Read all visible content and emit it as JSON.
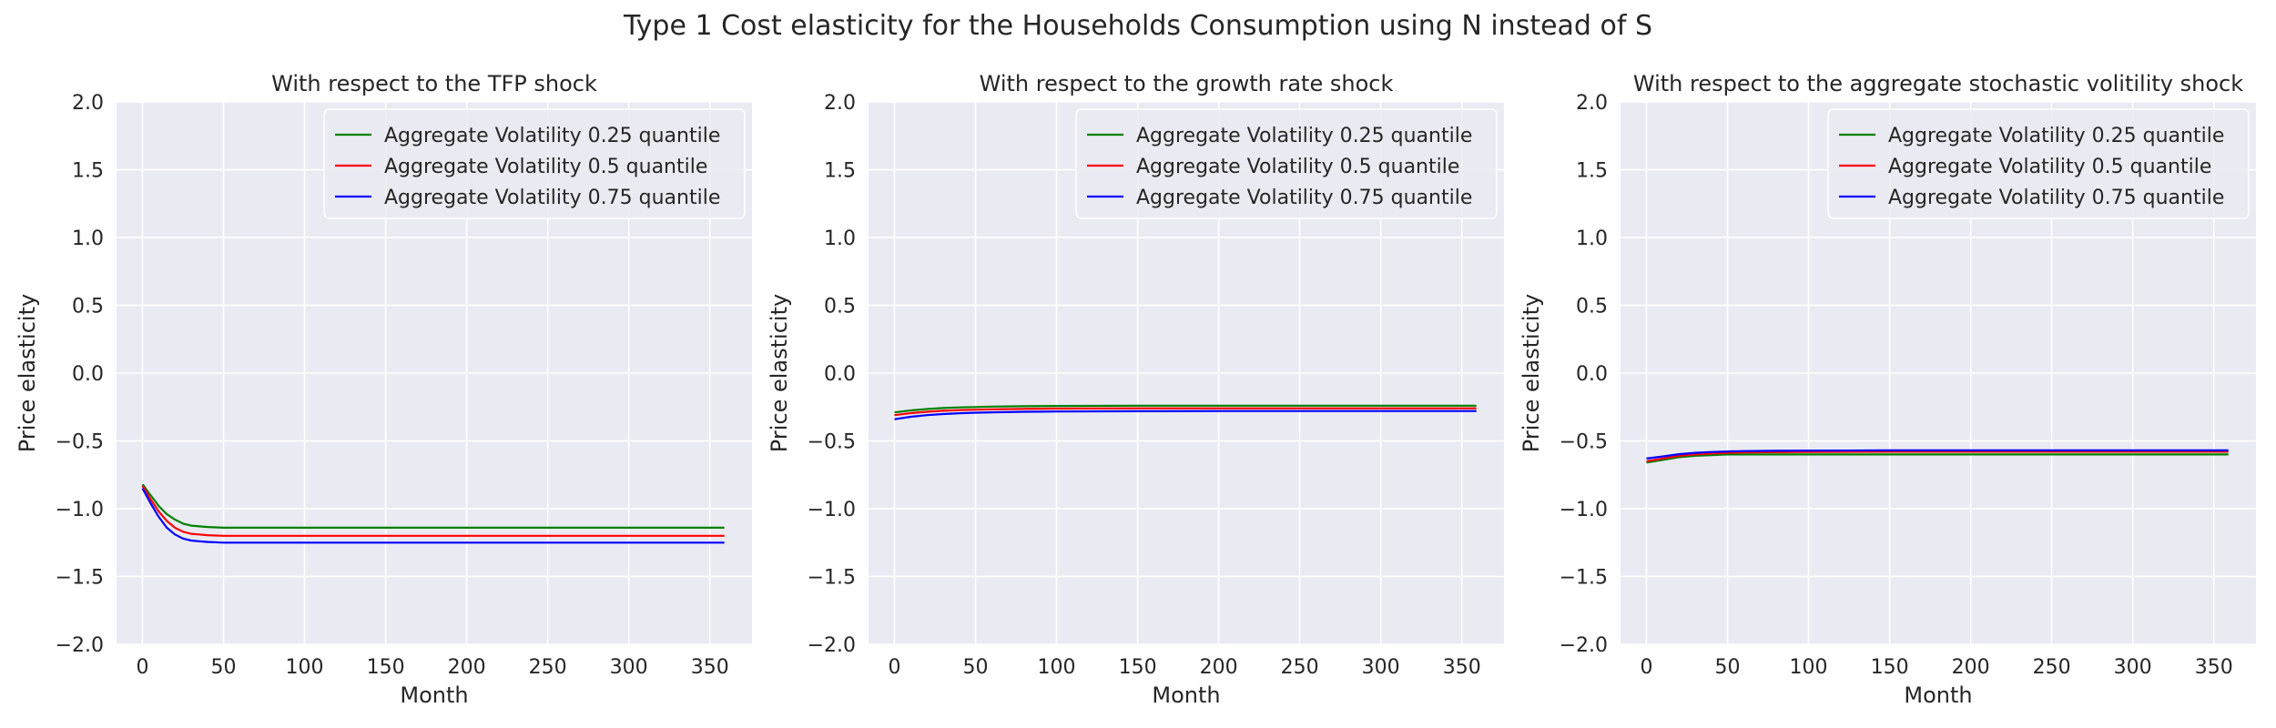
{
  "figure_title": "Type 1 Cost elasticity for the Households Consumption using N instead of S",
  "colors": {
    "panel_bg": "#eaeaf2",
    "grid": "#ffffff",
    "text": "#262626"
  },
  "chart_data": [
    {
      "type": "line",
      "title": "With respect to the TFP shock",
      "xlabel": "Month",
      "ylabel": "Price elasticity",
      "xlim": [
        -16,
        376
      ],
      "ylim": [
        -2.0,
        2.0
      ],
      "xticks": [
        0,
        50,
        100,
        150,
        200,
        250,
        300,
        350
      ],
      "yticks": [
        -2.0,
        -1.5,
        -1.0,
        -0.5,
        0.0,
        0.5,
        1.0,
        1.5,
        2.0
      ],
      "grid": true,
      "legend_position": "top-right",
      "x": [
        0,
        5,
        10,
        15,
        20,
        25,
        30,
        35,
        40,
        50,
        60,
        80,
        100,
        150,
        200,
        250,
        300,
        359
      ],
      "series": [
        {
          "name": "Aggregate Volatility 0.25 quantile",
          "color": "#008000",
          "values": [
            -0.82,
            -0.9,
            -0.98,
            -1.04,
            -1.08,
            -1.11,
            -1.125,
            -1.13,
            -1.135,
            -1.14,
            -1.14,
            -1.14,
            -1.14,
            -1.14,
            -1.14,
            -1.14,
            -1.14,
            -1.14
          ]
        },
        {
          "name": "Aggregate Volatility 0.5 quantile",
          "color": "#ff0000",
          "values": [
            -0.83,
            -0.93,
            -1.02,
            -1.09,
            -1.14,
            -1.17,
            -1.185,
            -1.19,
            -1.195,
            -1.2,
            -1.2,
            -1.2,
            -1.2,
            -1.2,
            -1.2,
            -1.2,
            -1.2,
            -1.2
          ]
        },
        {
          "name": "Aggregate Volatility 0.75 quantile",
          "color": "#0000ff",
          "values": [
            -0.85,
            -0.96,
            -1.06,
            -1.14,
            -1.19,
            -1.22,
            -1.235,
            -1.24,
            -1.245,
            -1.25,
            -1.25,
            -1.25,
            -1.25,
            -1.25,
            -1.25,
            -1.25,
            -1.25,
            -1.25
          ]
        }
      ]
    },
    {
      "type": "line",
      "title": "With respect to the growth rate shock",
      "xlabel": "Month",
      "ylabel": "Price elasticity",
      "xlim": [
        -16,
        376
      ],
      "ylim": [
        -2.0,
        2.0
      ],
      "xticks": [
        0,
        50,
        100,
        150,
        200,
        250,
        300,
        350
      ],
      "yticks": [
        -2.0,
        -1.5,
        -1.0,
        -0.5,
        0.0,
        0.5,
        1.0,
        1.5,
        2.0
      ],
      "grid": true,
      "legend_position": "top-right",
      "x": [
        0,
        10,
        20,
        30,
        40,
        50,
        60,
        80,
        100,
        150,
        200,
        250,
        300,
        359
      ],
      "series": [
        {
          "name": "Aggregate Volatility 0.25 quantile",
          "color": "#008000",
          "values": [
            -0.29,
            -0.275,
            -0.265,
            -0.258,
            -0.253,
            -0.25,
            -0.247,
            -0.244,
            -0.242,
            -0.24,
            -0.24,
            -0.24,
            -0.24,
            -0.24
          ]
        },
        {
          "name": "Aggregate Volatility 0.5 quantile",
          "color": "#ff0000",
          "values": [
            -0.31,
            -0.295,
            -0.285,
            -0.278,
            -0.273,
            -0.27,
            -0.267,
            -0.264,
            -0.262,
            -0.26,
            -0.26,
            -0.26,
            -0.26,
            -0.26
          ]
        },
        {
          "name": "Aggregate Volatility 0.75 quantile",
          "color": "#0000ff",
          "values": [
            -0.34,
            -0.322,
            -0.31,
            -0.302,
            -0.296,
            -0.292,
            -0.289,
            -0.285,
            -0.283,
            -0.281,
            -0.28,
            -0.28,
            -0.28,
            -0.28
          ]
        }
      ]
    },
    {
      "type": "line",
      "title": "With respect to the aggregate stochastic volitility shock",
      "xlabel": "Month",
      "ylabel": "Price elasticity",
      "xlim": [
        -16,
        376
      ],
      "ylim": [
        -2.0,
        2.0
      ],
      "xticks": [
        0,
        50,
        100,
        150,
        200,
        250,
        300,
        350
      ],
      "yticks": [
        -2.0,
        -1.5,
        -1.0,
        -0.5,
        0.0,
        0.5,
        1.0,
        1.5,
        2.0
      ],
      "grid": true,
      "legend_position": "top-right",
      "x": [
        0,
        10,
        20,
        30,
        40,
        50,
        60,
        80,
        100,
        150,
        200,
        250,
        300,
        359
      ],
      "series": [
        {
          "name": "Aggregate Volatility 0.25 quantile",
          "color": "#008000",
          "values": [
            -0.66,
            -0.64,
            -0.62,
            -0.61,
            -0.605,
            -0.6,
            -0.6,
            -0.6,
            -0.6,
            -0.6,
            -0.6,
            -0.6,
            -0.6,
            -0.6
          ]
        },
        {
          "name": "Aggregate Volatility 0.5 quantile",
          "color": "#ff0000",
          "values": [
            -0.65,
            -0.63,
            -0.61,
            -0.6,
            -0.593,
            -0.588,
            -0.585,
            -0.583,
            -0.582,
            -0.58,
            -0.58,
            -0.58,
            -0.58,
            -0.58
          ]
        },
        {
          "name": "Aggregate Volatility 0.75 quantile",
          "color": "#0000ff",
          "values": [
            -0.63,
            -0.615,
            -0.598,
            -0.588,
            -0.582,
            -0.578,
            -0.575,
            -0.573,
            -0.572,
            -0.57,
            -0.57,
            -0.57,
            -0.57,
            -0.57
          ]
        }
      ]
    }
  ]
}
